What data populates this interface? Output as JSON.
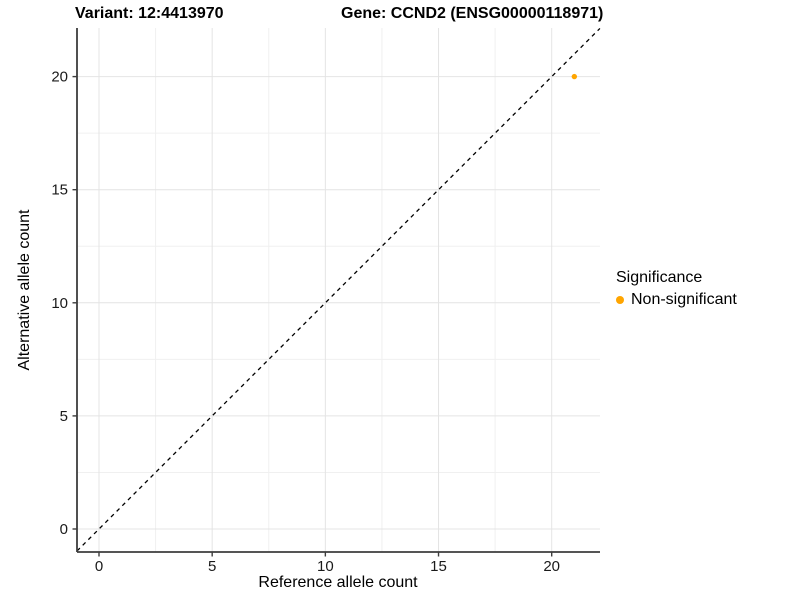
{
  "titles": {
    "variant": "Variant: 12:4413970",
    "gene": "Gene: CCND2 (ENSG00000118971)"
  },
  "axes": {
    "x": {
      "label": "Reference allele count",
      "major_ticks": [
        0,
        5,
        10,
        15,
        20
      ],
      "minor_ticks": [
        2.5,
        7.5,
        12.5,
        17.5
      ]
    },
    "y": {
      "label": "Alternative allele count",
      "major_ticks": [
        0,
        5,
        10,
        15,
        20
      ],
      "minor_ticks": [
        2.5,
        7.5,
        12.5,
        17.5
      ]
    }
  },
  "legend": {
    "title": "Significance",
    "items": [
      {
        "label": "Non-significant",
        "color": "#FFA500"
      }
    ]
  },
  "chart_data": {
    "type": "scatter",
    "title": "Variant: 12:4413970 | Gene: CCND2 (ENSG00000118971)",
    "xlabel": "Reference allele count",
    "ylabel": "Alternative allele count",
    "xlim": [
      -0.97,
      22.13
    ],
    "ylim": [
      -1.02,
      22.15
    ],
    "x_ticks": [
      0,
      5,
      10,
      15,
      20
    ],
    "y_ticks": [
      0,
      5,
      10,
      15,
      20
    ],
    "grid": true,
    "legend_position": "right",
    "series": [
      {
        "name": "Non-significant",
        "color": "#FFA500",
        "points": [
          {
            "x": 21,
            "y": 20
          }
        ]
      }
    ],
    "reference_line": {
      "type": "identity y=x",
      "style": "dashed",
      "color": "#000000"
    }
  },
  "colors": {
    "background": "#FFFFFF",
    "grid_major": "#E4E4E4",
    "grid_minor": "#F0F0F0",
    "axis_line": "#3D3D3D",
    "tick_text": "#1A1A1A",
    "point": "#FFA500"
  }
}
